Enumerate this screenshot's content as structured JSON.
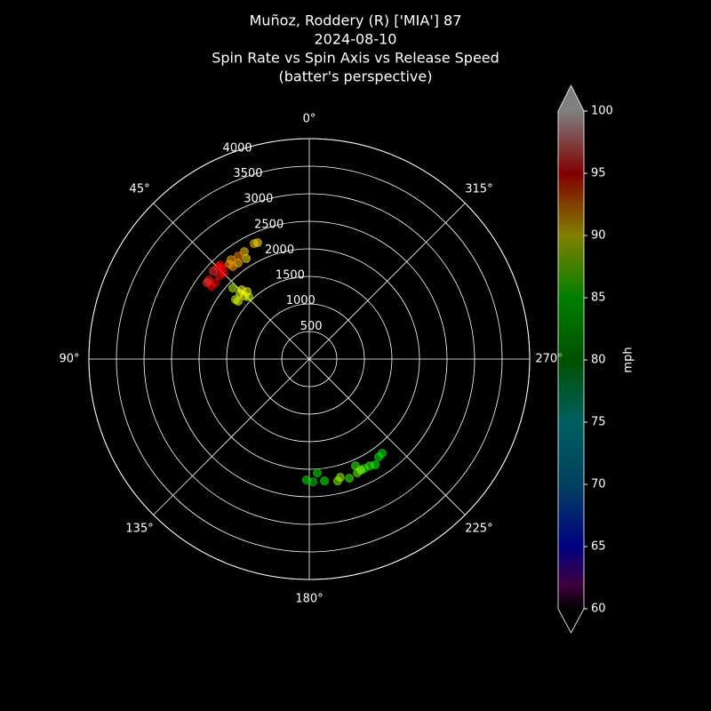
{
  "chart_data": {
    "type": "polar-scatter",
    "title": [
      "Muñoz, Roddery (R) ['MIA'] 87",
      "2024-08-10",
      "Spin Rate vs Spin Axis vs Release Speed",
      "(batter's perspective)"
    ],
    "theta_zero": "N",
    "theta_direction": "counterclockwise",
    "ylim": [
      0,
      4000
    ],
    "yticks": [
      500,
      1000,
      1500,
      2000,
      2500,
      3000,
      3500,
      4000
    ],
    "xticks": [
      {
        "value": 0,
        "label": "0°"
      },
      {
        "value": 45,
        "label": "45°"
      },
      {
        "value": 90,
        "label": "90°"
      },
      {
        "value": 135,
        "label": "135°"
      },
      {
        "value": 180,
        "label": "180°"
      },
      {
        "value": 225,
        "label": "225°"
      },
      {
        "value": 270,
        "label": "270°"
      },
      {
        "value": 315,
        "label": "315°"
      }
    ],
    "grid": true,
    "theta": [
      44.7,
      43.9,
      47.5,
      51.8,
      53.3,
      50.9,
      47.1,
      44.7,
      53.2,
      43.3,
      38.2,
      36.5,
      31.1,
      32.1,
      23.9,
      25.5,
      39.6,
      34.6,
      40.1,
      46.5,
      45.8,
      51.1,
      47.1,
      42.6,
      50.9,
      44.3,
      44.2,
      178.7,
      181.7,
      184.0,
      187.1,
      193.1,
      194.7,
      198.6,
      202.9,
      203.4,
      206.7,
      209.5,
      211.9,
      215.3,
      217.7,
      204.9
    ],
    "values": [
      2361,
      2281,
      2363,
      2320,
      2213,
      2202,
      2226,
      2202,
      2316,
      2350,
      2297,
      2168,
      2279,
      2153,
      2311,
      2323,
      2177,
      2273,
      2255,
      1734,
      1642,
      1721,
      1895,
      1666,
      1663,
      1757,
      1574,
      2194,
      2226,
      2070,
      2227,
      2270,
      2218,
      2280,
      2241,
      2110,
      2222,
      2225,
      2260,
      2175,
      2162,
      2223
    ],
    "color_values": [
      95.5,
      95,
      96,
      95.5,
      95,
      95,
      95.5,
      95,
      96,
      95,
      91.5,
      91,
      91,
      90.5,
      90.5,
      91,
      92,
      92.5,
      92,
      89.5,
      90,
      89,
      88.5,
      90,
      89.5,
      90,
      89,
      84,
      83,
      84,
      85,
      87.5,
      88,
      86,
      87,
      86,
      85,
      86,
      85,
      84,
      84.5,
      88
    ],
    "point_opacity": 0.55,
    "colormap": [
      [
        60,
        "#000000"
      ],
      [
        62,
        "#800080"
      ],
      [
        65,
        "#0000ff"
      ],
      [
        70,
        "#0080c0"
      ],
      [
        75,
        "#00c0c0"
      ],
      [
        80,
        "#00a000"
      ],
      [
        85,
        "#00ff00"
      ],
      [
        90,
        "#ffff00"
      ],
      [
        95,
        "#ff0000"
      ],
      [
        100,
        "#ffffff"
      ]
    ],
    "colorbar": {
      "label": "mph",
      "lim": [
        60,
        100
      ],
      "ticks": [
        60,
        65,
        70,
        75,
        80,
        85,
        90,
        95,
        100
      ],
      "extend": "both",
      "opacity": 0.5
    }
  }
}
